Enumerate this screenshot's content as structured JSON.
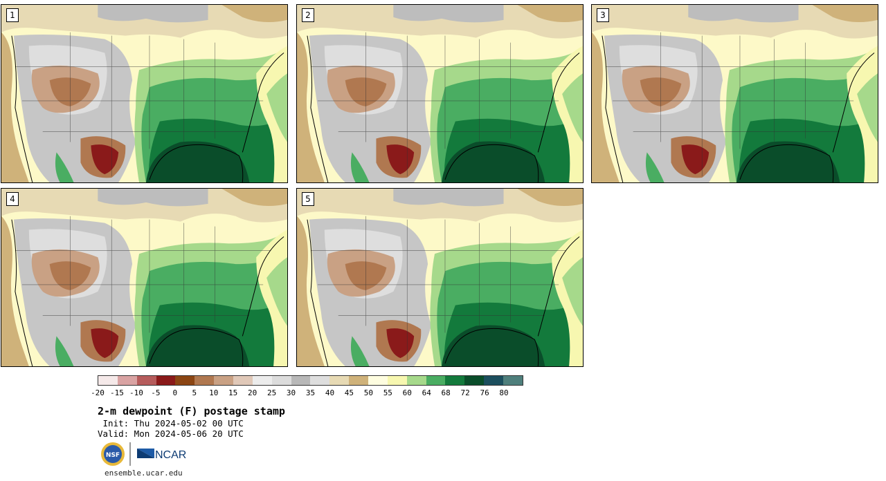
{
  "panels": [
    {
      "label": "1"
    },
    {
      "label": "2"
    },
    {
      "label": "3"
    },
    {
      "label": "4"
    },
    {
      "label": "5"
    }
  ],
  "colorbar": {
    "ticks": [
      "-20",
      "-15",
      "-10",
      "-5",
      "0",
      "5",
      "10",
      "15",
      "20",
      "25",
      "30",
      "35",
      "40",
      "45",
      "50",
      "55",
      "60",
      "64",
      "68",
      "72",
      "76",
      "80"
    ],
    "colors": [
      "#f5e9e9",
      "#d9a3a3",
      "#b65c5c",
      "#8a1a1a",
      "#8b4513",
      "#b07850",
      "#c9a184",
      "#e0c8b8",
      "#ececec",
      "#dcdcdc",
      "#b8b8b8",
      "#dedede",
      "#e7dab4",
      "#cfb27a",
      "#fefde0",
      "#f7f7b0",
      "#a6d98b",
      "#4aad62",
      "#137a3c",
      "#0a4d2a",
      "#1c4f5e",
      "#4f7f7c"
    ]
  },
  "title": "2-m dewpoint (F) postage stamp",
  "init": " Init: Thu 2024-05-02 00 UTC",
  "valid": "Valid: Mon 2024-05-06 20 UTC",
  "logos": {
    "nsf": "NSF",
    "ncar": "NCAR"
  },
  "website": "ensemble.ucar.edu"
}
